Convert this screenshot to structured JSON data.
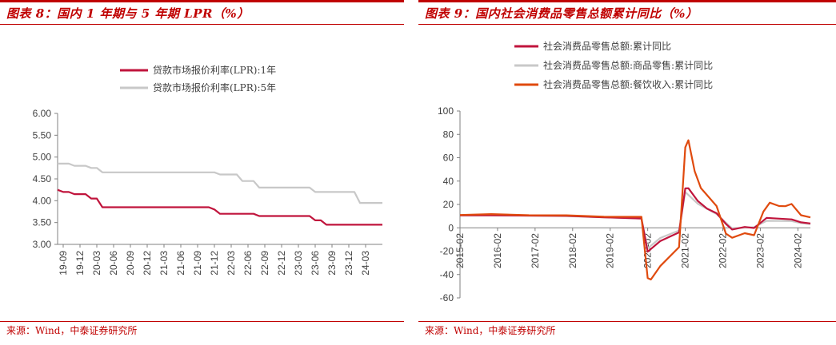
{
  "charts": {
    "left": {
      "title": "图表 8：国内 1 年期与 5 年期 LPR（%）",
      "source": "来源：Wind，中泰证券研究所"
    },
    "right": {
      "title": "图表 9：国内社会消费品零售总额累计同比（%）",
      "source": "来源：Wind，中泰证券研究所"
    }
  },
  "chart_data": [
    {
      "type": "line",
      "title": "图表 8：国内 1 年期与 5 年期 LPR（%）",
      "ylim": [
        3.0,
        6.0
      ],
      "yticks": [
        "3.00",
        "3.50",
        "4.00",
        "4.50",
        "5.00",
        "5.50",
        "6.00"
      ],
      "xticks": [
        "19-09",
        "19-12",
        "20-03",
        "20-06",
        "20-09",
        "20-12",
        "21-03",
        "21-06",
        "21-09",
        "21-12",
        "22-03",
        "22-06",
        "22-09",
        "22-12",
        "23-03",
        "23-06",
        "23-09",
        "23-12",
        "24-03"
      ],
      "x_start": "2019-08",
      "x_end": "2024-06",
      "grid": false,
      "legend_position": "top-center",
      "series": [
        {
          "name": "贷款市场报价利率(LPR):1年",
          "color": "#c0143c",
          "points": [
            [
              "2019-08",
              4.25
            ],
            [
              "2019-09",
              4.2
            ],
            [
              "2019-10",
              4.2
            ],
            [
              "2019-11",
              4.15
            ],
            [
              "2019-12",
              4.15
            ],
            [
              "2020-01",
              4.15
            ],
            [
              "2020-02",
              4.05
            ],
            [
              "2020-03",
              4.05
            ],
            [
              "2020-04",
              3.85
            ],
            [
              "2021-11",
              3.85
            ],
            [
              "2021-12",
              3.8
            ],
            [
              "2022-01",
              3.7
            ],
            [
              "2022-07",
              3.7
            ],
            [
              "2022-08",
              3.65
            ],
            [
              "2023-05",
              3.65
            ],
            [
              "2023-06",
              3.55
            ],
            [
              "2023-07",
              3.55
            ],
            [
              "2023-08",
              3.45
            ],
            [
              "2024-06",
              3.45
            ]
          ]
        },
        {
          "name": "贷款市场报价利率(LPR):5年",
          "color": "#c8c8c8",
          "points": [
            [
              "2019-08",
              4.85
            ],
            [
              "2019-10",
              4.85
            ],
            [
              "2019-11",
              4.8
            ],
            [
              "2020-01",
              4.8
            ],
            [
              "2020-02",
              4.75
            ],
            [
              "2020-03",
              4.75
            ],
            [
              "2020-04",
              4.65
            ],
            [
              "2021-12",
              4.65
            ],
            [
              "2022-01",
              4.6
            ],
            [
              "2022-04",
              4.6
            ],
            [
              "2022-05",
              4.45
            ],
            [
              "2022-07",
              4.45
            ],
            [
              "2022-08",
              4.3
            ],
            [
              "2023-05",
              4.3
            ],
            [
              "2023-06",
              4.2
            ],
            [
              "2024-01",
              4.2
            ],
            [
              "2024-02",
              3.95
            ],
            [
              "2024-06",
              3.95
            ]
          ]
        }
      ]
    },
    {
      "type": "line",
      "title": "图表 9：国内社会消费品零售总额累计同比（%）",
      "ylim": [
        -60,
        100
      ],
      "yticks": [
        "-60",
        "-40",
        "-20",
        "0",
        "20",
        "40",
        "60",
        "80",
        "100"
      ],
      "xticks": [
        "2015-02",
        "2016-02",
        "2017-02",
        "2018-02",
        "2019-02",
        "2020-02",
        "2021-02",
        "2022-02",
        "2023-02",
        "2024-02"
      ],
      "x_start": "2015-02",
      "x_end": "2024-06",
      "grid": false,
      "legend_position": "top-center",
      "series": [
        {
          "name": "社会消费品零售总额:累计同比",
          "color": "#c0143c",
          "points": [
            [
              "2015-02",
              10.7
            ],
            [
              "2015-12",
              10.7
            ],
            [
              "2016-12",
              10.4
            ],
            [
              "2017-12",
              10.2
            ],
            [
              "2018-12",
              9.0
            ],
            [
              "2019-12",
              8.0
            ],
            [
              "2020-02",
              -20.5
            ],
            [
              "2020-06",
              -11.4
            ],
            [
              "2020-12",
              -3.9
            ],
            [
              "2021-02",
              33.8
            ],
            [
              "2021-03",
              33.9
            ],
            [
              "2021-06",
              23.0
            ],
            [
              "2021-09",
              16.4
            ],
            [
              "2021-12",
              12.5
            ],
            [
              "2022-03",
              3.3
            ],
            [
              "2022-05",
              -1.5
            ],
            [
              "2022-09",
              0.7
            ],
            [
              "2022-12",
              -0.2
            ],
            [
              "2023-04",
              8.5
            ],
            [
              "2023-06",
              8.2
            ],
            [
              "2023-12",
              7.2
            ],
            [
              "2024-03",
              4.7
            ],
            [
              "2024-06",
              3.7
            ]
          ]
        },
        {
          "name": "社会消费品零售总额:商品零售:累计同比",
          "color": "#c8c8c8",
          "points": [
            [
              "2015-02",
              10.5
            ],
            [
              "2015-12",
              10.6
            ],
            [
              "2016-12",
              10.4
            ],
            [
              "2017-12",
              10.0
            ],
            [
              "2018-12",
              8.9
            ],
            [
              "2019-12",
              7.9
            ],
            [
              "2020-02",
              -17.6
            ],
            [
              "2020-06",
              -8.7
            ],
            [
              "2020-12",
              -2.3
            ],
            [
              "2021-02",
              30.7
            ],
            [
              "2021-06",
              20.6
            ],
            [
              "2021-12",
              11.8
            ],
            [
              "2022-05",
              -0.5
            ],
            [
              "2022-12",
              0.5
            ],
            [
              "2023-04",
              6.0
            ],
            [
              "2023-12",
              5.8
            ],
            [
              "2024-03",
              4.0
            ],
            [
              "2024-06",
              3.2
            ]
          ]
        },
        {
          "name": "社会消费品零售总额:餐饮收入:累计同比",
          "color": "#e04a0e",
          "points": [
            [
              "2015-02",
              11.0
            ],
            [
              "2015-12",
              11.7
            ],
            [
              "2016-12",
              10.8
            ],
            [
              "2017-12",
              10.7
            ],
            [
              "2018-12",
              9.5
            ],
            [
              "2019-12",
              9.4
            ],
            [
              "2020-02",
              -43.1
            ],
            [
              "2020-03",
              -44.3
            ],
            [
              "2020-06",
              -32.8
            ],
            [
              "2020-12",
              -16.6
            ],
            [
              "2021-02",
              68.9
            ],
            [
              "2021-03",
              75.0
            ],
            [
              "2021-05",
              48.6
            ],
            [
              "2021-07",
              34.0
            ],
            [
              "2021-12",
              18.6
            ],
            [
              "2022-03",
              -5.0
            ],
            [
              "2022-05",
              -8.5
            ],
            [
              "2022-09",
              -4.6
            ],
            [
              "2022-12",
              -6.3
            ],
            [
              "2023-03",
              13.9
            ],
            [
              "2023-05",
              21.5
            ],
            [
              "2023-08",
              18.6
            ],
            [
              "2023-10",
              18.5
            ],
            [
              "2023-12",
              20.4
            ],
            [
              "2024-03",
              10.8
            ],
            [
              "2024-06",
              8.9
            ]
          ]
        }
      ]
    }
  ]
}
